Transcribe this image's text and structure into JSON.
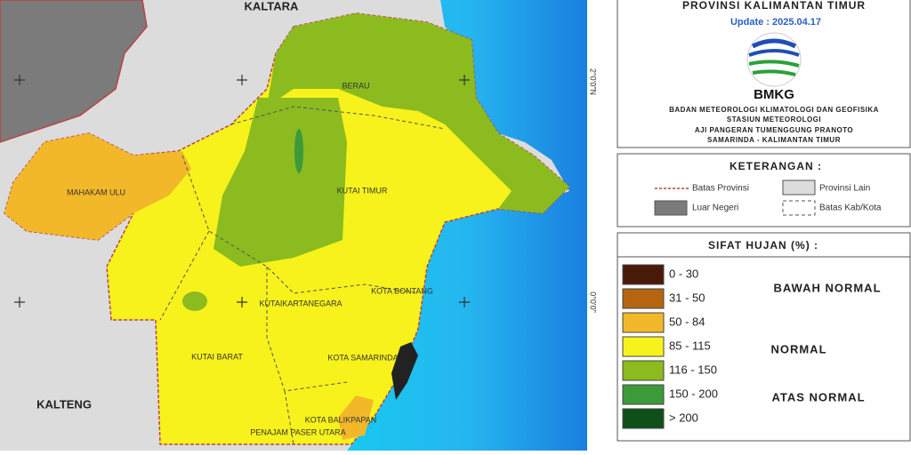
{
  "header": {
    "title": "PROVINSI KALIMANTAN TIMUR",
    "update": "Update : 2025.04.17",
    "logo": "BMKG",
    "agency": [
      "BADAN METEOROLOGI KLIMATOLOGI DAN GEOFISIKA",
      "STASIUN METEOROLOGI",
      "AJI PANGERAN TUMENGGUNG PRANOTO",
      "SAMARINDA - KALIMANTAN TIMUR"
    ]
  },
  "legend": {
    "title": "KETERANGAN :",
    "items": [
      "Batas Provinsi",
      "Provinsi Lain",
      "Luar Negeri",
      "Batas Kab/Kota"
    ]
  },
  "rain": {
    "title": "SIFAT HUJAN (%) :",
    "classes": [
      {
        "label": "0 - 30",
        "color": "#4a1a08"
      },
      {
        "label": "31 - 50",
        "color": "#b5650f"
      },
      {
        "label": "50 - 84",
        "color": "#f2b829"
      },
      {
        "label": "85 - 115",
        "color": "#f7f21c"
      },
      {
        "label": "116 - 150",
        "color": "#8bbb1f"
      },
      {
        "label": "150 - 200",
        "color": "#3d9a3a"
      },
      {
        "label": "> 200",
        "color": "#0f4f1a"
      }
    ],
    "groups": [
      "BAWAH NORMAL",
      "NORMAL",
      "ATAS NORMAL"
    ]
  },
  "map": {
    "labels": [
      "KALTARA",
      "KALTENG",
      "BERAU",
      "MAHAKAM ULU",
      "KUTAI TIMUR",
      "KUTAIKARTANEGARA",
      "KOTA BONTANG",
      "KUTAI BARAT",
      "KOTA SAMARINDA",
      "KOTA BALIKPAPAN",
      "PENAJAM PASER UTARA"
    ],
    "graticule": [
      "2°0'0\"N",
      "0°0'0\""
    ]
  }
}
